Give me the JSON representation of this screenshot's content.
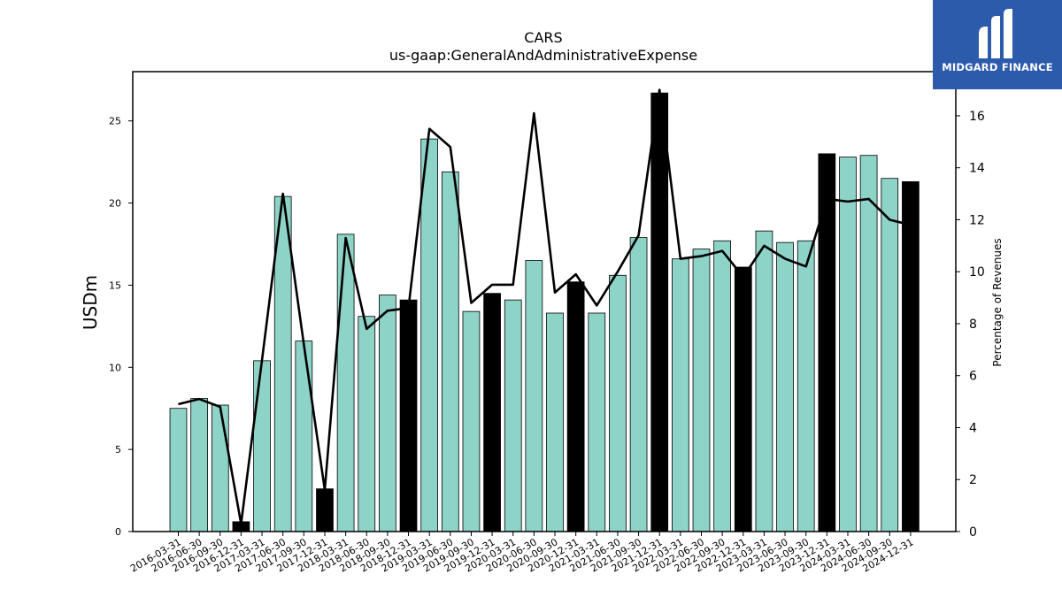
{
  "brand": {
    "name": "MIDGARD FINANCE",
    "bg_color": "#2d5bab",
    "icon": "midgard-m-logo-icon"
  },
  "chart_data": {
    "type": "bar",
    "title": "CARS",
    "subtitle": "us-gaap:GeneralAndAdministrativeExpense",
    "ylabel": "USDm",
    "ylabel_right": "Percentage of Revenues",
    "ylim": [
      0,
      28
    ],
    "ylim_right": [
      0,
      17.7
    ],
    "yticks": [
      0,
      5,
      10,
      15,
      20,
      25
    ],
    "yticks_right": [
      0,
      2,
      4,
      6,
      8,
      10,
      12,
      14,
      16
    ],
    "grid": false,
    "bar_color": "#8dd3c7",
    "highlight_color": "#000000",
    "line_color": "#000000",
    "categories": [
      "2016-03-31",
      "2016-06-30",
      "2016-09-30",
      "2016-12-31",
      "2017-03-31",
      "2017-06-30",
      "2017-09-30",
      "2017-12-31",
      "2018-03-31",
      "2018-06-30",
      "2018-09-30",
      "2018-12-31",
      "2019-03-31",
      "2019-06-30",
      "2019-09-30",
      "2019-12-31",
      "2020-03-31",
      "2020-06-30",
      "2020-09-30",
      "2020-12-31",
      "2021-03-31",
      "2021-06-30",
      "2021-09-30",
      "2021-12-31",
      "2022-03-31",
      "2022-06-30",
      "2022-09-30",
      "2022-12-31",
      "2023-03-31",
      "2023-06-30",
      "2023-09-30",
      "2023-12-31",
      "2024-03-31",
      "2024-06-30",
      "2024-09-30",
      "2024-12-31"
    ],
    "series": [
      {
        "type": "bar",
        "values": [
          7.5,
          8.1,
          7.7,
          0.6,
          10.4,
          20.4,
          11.6,
          2.6,
          18.1,
          13.1,
          14.4,
          14.1,
          23.9,
          21.9,
          13.4,
          14.5,
          14.1,
          16.5,
          13.3,
          15.2,
          13.3,
          15.6,
          17.9,
          26.7,
          16.6,
          17.2,
          17.7,
          16.1,
          18.3,
          17.6,
          17.7,
          23.0,
          22.8,
          22.9,
          21.5,
          21.3
        ],
        "highlight": [
          false,
          false,
          false,
          true,
          false,
          false,
          false,
          true,
          false,
          false,
          false,
          true,
          false,
          false,
          false,
          true,
          false,
          false,
          false,
          true,
          false,
          false,
          false,
          true,
          false,
          false,
          false,
          true,
          false,
          false,
          false,
          true,
          false,
          false,
          false,
          true
        ]
      },
      {
        "type": "line",
        "axis": "right",
        "values": [
          4.9,
          5.1,
          4.8,
          0.3,
          6.6,
          13.0,
          7.2,
          1.6,
          11.3,
          7.8,
          8.5,
          8.6,
          15.5,
          14.8,
          8.8,
          9.5,
          9.5,
          16.1,
          9.2,
          9.9,
          8.7,
          10.0,
          11.4,
          17.0,
          10.5,
          10.6,
          10.8,
          9.8,
          11.0,
          10.5,
          10.2,
          12.8,
          12.7,
          12.8,
          12.0,
          11.8
        ]
      }
    ]
  }
}
